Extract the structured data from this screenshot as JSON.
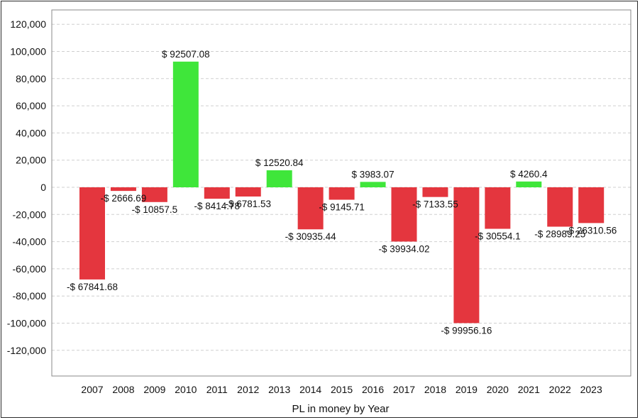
{
  "chart_data": {
    "type": "bar",
    "xlabel": "PL in money by Year",
    "ylabel": "",
    "ylim": [
      -140000,
      140000
    ],
    "yticks": [
      120000,
      100000,
      80000,
      60000,
      40000,
      20000,
      0,
      -20000,
      -40000,
      -60000,
      -80000,
      -100000,
      -120000
    ],
    "ytick_labels": [
      "120,000",
      "100,000",
      "80,000",
      "60,000",
      "40,000",
      "20,000",
      "0",
      "-20,000",
      "-40,000",
      "-60,000",
      "-80,000",
      "-100,000",
      "-120,000"
    ],
    "grid": true,
    "categories": [
      "2007",
      "2008",
      "2009",
      "2010",
      "2011",
      "2012",
      "2013",
      "2014",
      "2015",
      "2016",
      "2017",
      "2018",
      "2019",
      "2020",
      "2021",
      "2022",
      "2023"
    ],
    "values": [
      -67841.68,
      -2666.69,
      -10857.5,
      92507.08,
      -8414.78,
      -6781.53,
      12520.84,
      -30935.44,
      -9145.71,
      3983.07,
      -39934.02,
      -7133.55,
      -99956.16,
      -30554.1,
      4260.4,
      -28989.25,
      -26310.56
    ],
    "data_labels": [
      "-$ 67841.68",
      "-$ 2666.69",
      "-$ 10857.5",
      "$ 92507.08",
      "-$ 8414.78",
      "-$ 6781.53",
      "$ 12520.84",
      "-$ 30935.44",
      "-$ 9145.71",
      "$ 3983.07",
      "-$ 39934.02",
      "-$ 7133.55",
      "-$ 99956.16",
      "-$ 30554.1",
      "$ 4260.4",
      "-$ 28989.25",
      "-$ 26310.56"
    ],
    "colors": {
      "positive": "#3fe63a",
      "negative": "#e4363e"
    }
  }
}
